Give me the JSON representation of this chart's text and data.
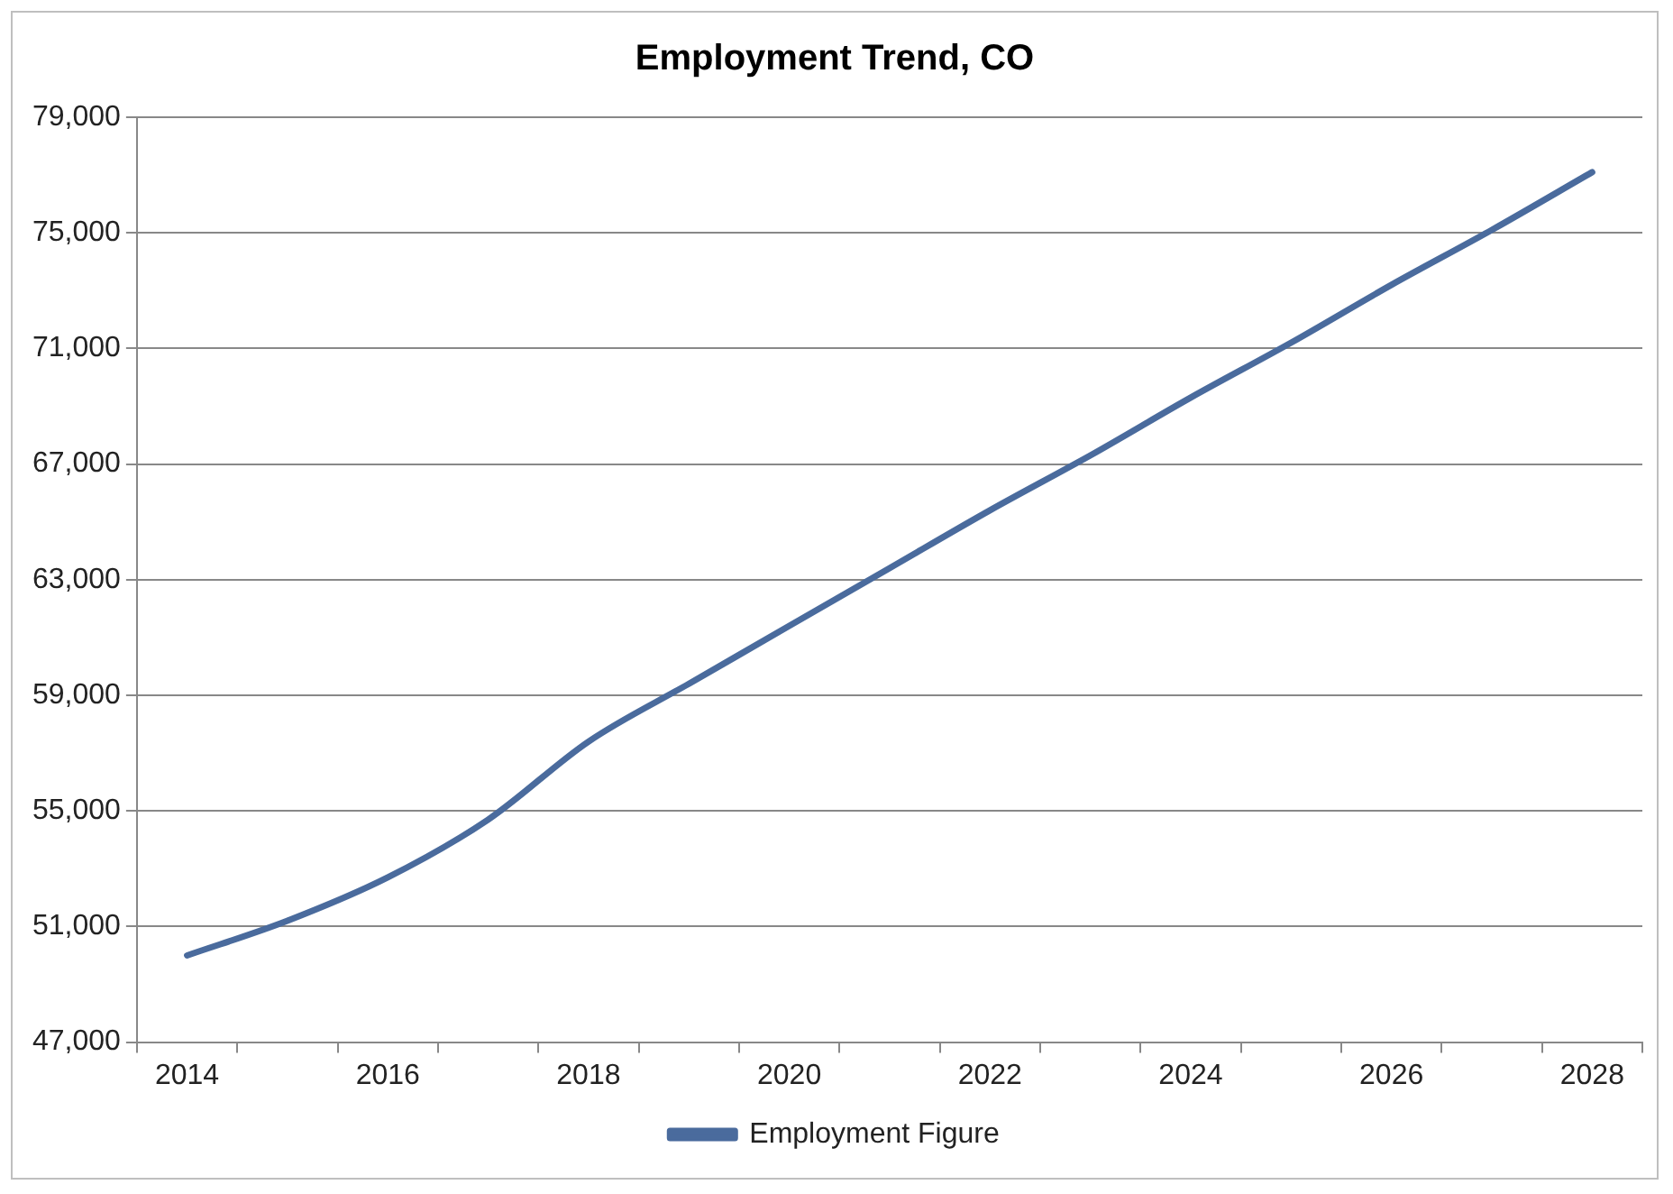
{
  "chart_data": {
    "type": "line",
    "title": "Employment Trend, CO",
    "categories": [
      "2014",
      null,
      "2016",
      null,
      "2018",
      null,
      "2020",
      null,
      "2022",
      null,
      "2024",
      null,
      "2026",
      null,
      "2028"
    ],
    "series": [
      {
        "name": "Employment Figure",
        "color": "#4a6b9d",
        "values": [
          50000,
          51200,
          52700,
          54700,
          57400,
          59400,
          61400,
          63400,
          65400,
          67300,
          69300,
          71200,
          73200,
          75100,
          77100
        ]
      }
    ],
    "ylim": [
      47000,
      79000
    ],
    "yticks": [
      {
        "value": 47000,
        "label": "47,000"
      },
      {
        "value": 51000,
        "label": "51,000"
      },
      {
        "value": 55000,
        "label": "55,000"
      },
      {
        "value": 59000,
        "label": "59,000"
      },
      {
        "value": 63000,
        "label": "63,000"
      },
      {
        "value": 67000,
        "label": "67,000"
      },
      {
        "value": 71000,
        "label": "71,000"
      },
      {
        "value": 75000,
        "label": "75,000"
      },
      {
        "value": 79000,
        "label": "79,000"
      }
    ],
    "grid": "y",
    "legend": "bottom",
    "marker": "none",
    "line_style": "solid"
  }
}
